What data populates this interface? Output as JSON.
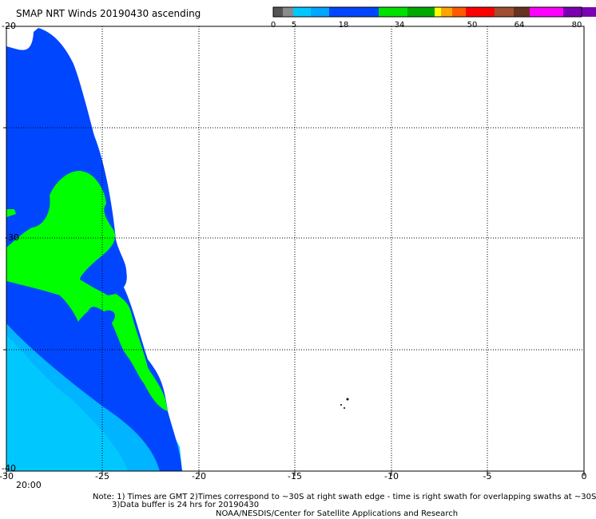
{
  "title": "SMAP NRT Winds 20190430 ascending",
  "colorbar": {
    "tick_labels": [
      "0",
      "5",
      "18",
      "34",
      "50",
      "64",
      "80"
    ],
    "segments": [
      "#555555",
      "#8c8c8c",
      "#00c8ff",
      "#00a6ff",
      "#0046ff",
      "#00e000",
      "#00a800",
      "#ffff00",
      "#ffa500",
      "#ff5a00",
      "#ff0000",
      "#a05030",
      "#663322",
      "#ff00ff",
      "#7a00b0"
    ]
  },
  "map": {
    "x_ticks": [
      "-30",
      "-25",
      "-20",
      "-15",
      "-10",
      "-5",
      "0"
    ],
    "y_ticks_visible": [
      "-20",
      "-30",
      "-40"
    ],
    "grid": true,
    "colors": {
      "light_blue": "#00c8ff",
      "blue": "#0046ff",
      "green": "#00ff00"
    }
  },
  "time_label": "20:00",
  "notes": {
    "line1": "Note: 1) Times are GMT 2)Times correspond to ~30S at right swath edge - time is right swath for overlapping swaths at ~30S",
    "line2": "3)Data buffer is 24 hrs for 20190430",
    "line3": "NOAA/NESDIS/Center for Satellite Applications and Research"
  }
}
